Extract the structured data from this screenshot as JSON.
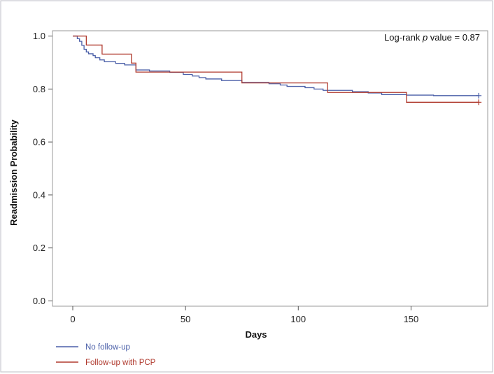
{
  "chart_data": {
    "type": "line",
    "step": true,
    "xlabel": "Days",
    "ylabel": "Readmission Probability",
    "xlim": [
      -9,
      184
    ],
    "ylim": [
      -0.02,
      1.02
    ],
    "xticks": [
      0,
      50,
      100,
      150
    ],
    "yticks": [
      0.0,
      0.2,
      0.4,
      0.6,
      0.8,
      1.0
    ],
    "xtick_labels": [
      "0",
      "50",
      "100",
      "150"
    ],
    "ytick_labels": [
      "0.0",
      "0.2",
      "0.4",
      "0.6",
      "0.8",
      "1.0"
    ],
    "annotation": {
      "prefix": "Log-rank ",
      "italic": "p",
      "suffix": " value = 0.87"
    },
    "legend_position": "bottom-left",
    "grid": false,
    "series": [
      {
        "name": "No follow-up",
        "color": "#4a5fa8",
        "censor_marks": [
          [
            180,
            0.775
          ]
        ],
        "points": [
          [
            0,
            1.0
          ],
          [
            2,
            0.99
          ],
          [
            3,
            0.98
          ],
          [
            4,
            0.965
          ],
          [
            5,
            0.95
          ],
          [
            6,
            0.94
          ],
          [
            7,
            0.933
          ],
          [
            9,
            0.926
          ],
          [
            10,
            0.918
          ],
          [
            12,
            0.91
          ],
          [
            14,
            0.903
          ],
          [
            19,
            0.897
          ],
          [
            23,
            0.891
          ],
          [
            28,
            0.872
          ],
          [
            34,
            0.868
          ],
          [
            43,
            0.863
          ],
          [
            49,
            0.855
          ],
          [
            53,
            0.849
          ],
          [
            56,
            0.843
          ],
          [
            59,
            0.838
          ],
          [
            66,
            0.832
          ],
          [
            75,
            0.825
          ],
          [
            87,
            0.82
          ],
          [
            92,
            0.815
          ],
          [
            95,
            0.81
          ],
          [
            103,
            0.805
          ],
          [
            107,
            0.8
          ],
          [
            111,
            0.795
          ],
          [
            124,
            0.79
          ],
          [
            131,
            0.785
          ],
          [
            137,
            0.779
          ],
          [
            148,
            0.777
          ],
          [
            160,
            0.775
          ],
          [
            180,
            0.775
          ]
        ]
      },
      {
        "name": "Follow-up with PCP",
        "color": "#b03a2e",
        "censor_marks": [
          [
            180,
            0.75
          ]
        ],
        "points": [
          [
            0,
            1.0
          ],
          [
            6,
            0.966
          ],
          [
            13,
            0.932
          ],
          [
            26,
            0.898
          ],
          [
            28,
            0.864
          ],
          [
            75,
            0.823
          ],
          [
            113,
            0.787
          ],
          [
            148,
            0.75
          ],
          [
            180,
            0.75
          ]
        ]
      }
    ]
  }
}
